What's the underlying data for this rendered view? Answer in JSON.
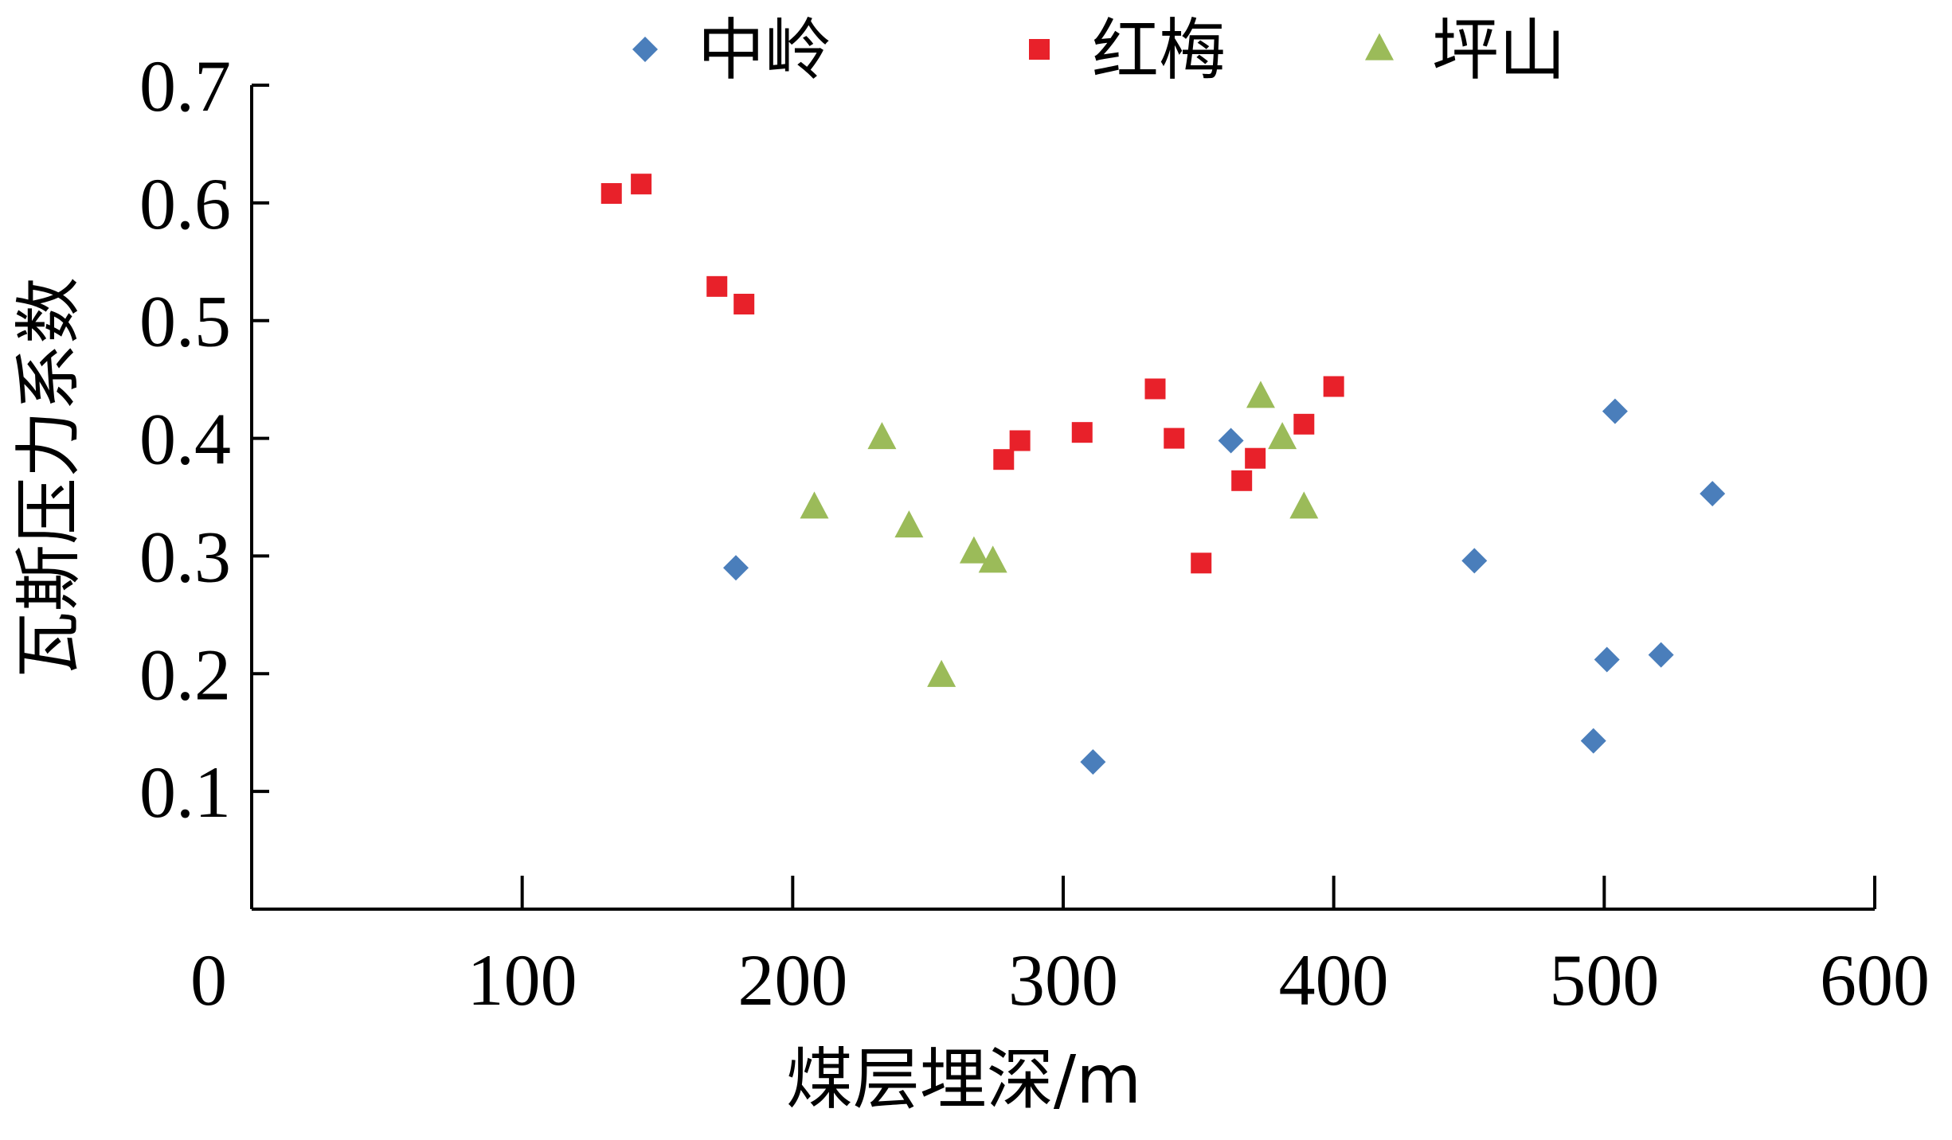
{
  "chart_data": {
    "type": "scatter",
    "title": "",
    "xlabel": "煤层埋深/m",
    "ylabel": "瓦斯压力系数",
    "xlim": [
      0,
      600
    ],
    "ylim": [
      0.0,
      0.7
    ],
    "x_ticks": [
      "0",
      "100",
      "200",
      "300",
      "400",
      "500",
      "600"
    ],
    "y_ticks": [
      "0.1",
      "0.2",
      "0.3",
      "0.4",
      "0.5",
      "0.6",
      "0.7"
    ],
    "grid": false,
    "legend_position": "top",
    "series": [
      {
        "name": "中岭",
        "marker": "diamond",
        "color": "#4a7ebb",
        "points": [
          [
            179,
            0.29
          ],
          [
            311,
            0.125
          ],
          [
            362,
            0.398
          ],
          [
            452,
            0.296
          ],
          [
            496,
            0.143
          ],
          [
            501,
            0.212
          ],
          [
            504,
            0.423
          ],
          [
            521,
            0.216
          ],
          [
            540,
            0.353
          ]
        ]
      },
      {
        "name": "红梅",
        "marker": "square",
        "color": "#e8212a",
        "points": [
          [
            133,
            0.608
          ],
          [
            144,
            0.616
          ],
          [
            172,
            0.529
          ],
          [
            182,
            0.514
          ],
          [
            278,
            0.382
          ],
          [
            284,
            0.398
          ],
          [
            307,
            0.405
          ],
          [
            334,
            0.442
          ],
          [
            341,
            0.4
          ],
          [
            351,
            0.294
          ],
          [
            366,
            0.364
          ],
          [
            371,
            0.383
          ],
          [
            389,
            0.412
          ],
          [
            400,
            0.444
          ]
        ]
      },
      {
        "name": "坪山",
        "marker": "triangle",
        "color": "#9bbb59",
        "points": [
          [
            208,
            0.341
          ],
          [
            233,
            0.4
          ],
          [
            243,
            0.325
          ],
          [
            255,
            0.198
          ],
          [
            267,
            0.303
          ],
          [
            274,
            0.295
          ],
          [
            373,
            0.435
          ],
          [
            381,
            0.4
          ],
          [
            389,
            0.341
          ]
        ]
      }
    ]
  }
}
